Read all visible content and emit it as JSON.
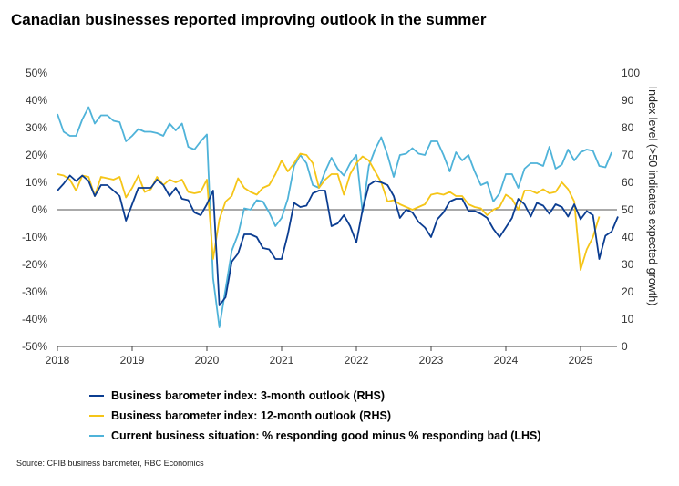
{
  "title": "Canadian businesses reported improving outlook in the summer",
  "source": "Source: CFIB business barometer, RBC Economics",
  "chart_data": {
    "type": "line",
    "x_start": 2018.0,
    "x_step": 0.08333,
    "xlim": [
      2018,
      2025.5
    ],
    "x_ticks": [
      "2018",
      "2019",
      "2020",
      "2021",
      "2022",
      "2023",
      "2024",
      "2025"
    ],
    "y_left": {
      "lim": [
        -50,
        50
      ],
      "ticks": [
        "50%",
        "40%",
        "30%",
        "20%",
        "10%",
        "0%",
        "-10%",
        "-20%",
        "-30%",
        "-40%",
        "-50%"
      ]
    },
    "y_right": {
      "lim": [
        0,
        100
      ],
      "ticks": [
        "100",
        "90",
        "80",
        "70",
        "60",
        "50",
        "40",
        "30",
        "20",
        "10",
        "0"
      ],
      "label": "Index level (>50 indicates expected growth)"
    },
    "zero_line_left": 0,
    "series": [
      {
        "name": "Business barometer index: 3-month outlook (RHS)",
        "axis": "right",
        "color": "#0b3d91",
        "values": [
          57,
          59.5,
          62.5,
          60.5,
          62.5,
          60.5,
          55,
          59,
          59,
          57,
          55,
          46,
          52,
          58,
          58,
          58,
          61,
          59,
          55,
          58,
          54,
          53.5,
          49,
          48,
          52,
          57,
          15,
          18,
          31,
          34,
          41,
          41,
          40,
          36,
          35.5,
          32,
          32,
          41,
          52.5,
          51,
          51.5,
          56,
          57,
          57,
          44,
          45,
          48,
          44,
          38,
          50,
          59,
          60.5,
          60,
          59,
          55,
          47,
          50,
          49,
          45.5,
          43.5,
          40,
          46.5,
          49,
          53,
          54,
          54,
          49.5,
          49.5,
          48.5,
          47,
          43,
          40,
          43.5,
          47,
          54,
          52,
          47.5,
          52.5,
          51.5,
          48.5,
          52,
          51,
          47.5,
          52,
          46.5,
          49.5,
          48,
          32,
          40.5,
          42,
          47.5
        ]
      },
      {
        "name": "Business barometer index: 12-month outlook (RHS)",
        "axis": "right",
        "color": "#f5c518",
        "values": [
          63,
          62.5,
          61,
          57,
          62.5,
          62,
          55,
          62,
          61.5,
          61,
          62,
          54.5,
          58,
          62.5,
          56.5,
          57.5,
          62,
          59,
          61,
          60,
          61,
          56.5,
          56,
          56.5,
          61,
          32,
          46.5,
          53,
          55,
          61.5,
          58,
          56.5,
          55.5,
          58,
          59,
          63,
          68,
          64,
          67,
          70.5,
          70,
          67,
          58,
          61,
          63,
          63,
          55.5,
          63,
          67,
          69.5,
          68,
          64,
          60,
          53,
          53.5,
          52,
          51,
          50,
          51,
          52,
          55.5,
          56,
          55.5,
          56.5,
          55,
          55,
          52,
          51,
          50.5,
          48,
          50,
          51,
          55.5,
          54,
          50,
          57,
          57,
          56,
          57.5,
          56,
          56.5,
          60,
          57.5,
          53,
          28,
          35.5,
          40,
          47.5
        ]
      },
      {
        "name": "Current business situation: % responding good minus % responding bad (LHS)",
        "axis": "left",
        "color": "#4fb3d9",
        "values": [
          35,
          28.5,
          27,
          27,
          33,
          37.5,
          31.5,
          34.5,
          34.5,
          32.5,
          32,
          25,
          27,
          29.5,
          28.5,
          28.5,
          28,
          27,
          31.5,
          29,
          31.5,
          23,
          22,
          25,
          27.5,
          -25,
          -43,
          -29,
          -15,
          -9,
          0.5,
          0,
          3.5,
          3,
          -1,
          -6,
          -3,
          4,
          16,
          20,
          17,
          9,
          8,
          14,
          19,
          15,
          12.5,
          17,
          20,
          -1,
          16,
          22,
          26.5,
          20,
          12,
          20,
          20.5,
          22.5,
          20.5,
          20,
          25,
          25,
          20,
          14,
          21,
          18,
          20,
          14,
          9,
          10,
          3,
          6,
          13,
          13,
          8,
          15,
          17,
          17,
          16,
          23,
          15,
          16.5,
          22,
          18,
          21,
          22,
          21.5,
          16,
          15.5,
          21
        ]
      }
    ],
    "legend": [
      "Business barometer index: 3-month outlook (RHS)",
      "Business barometer index: 12-month outlook (RHS)",
      "Current business situation: % responding good minus % responding bad (LHS)"
    ]
  }
}
